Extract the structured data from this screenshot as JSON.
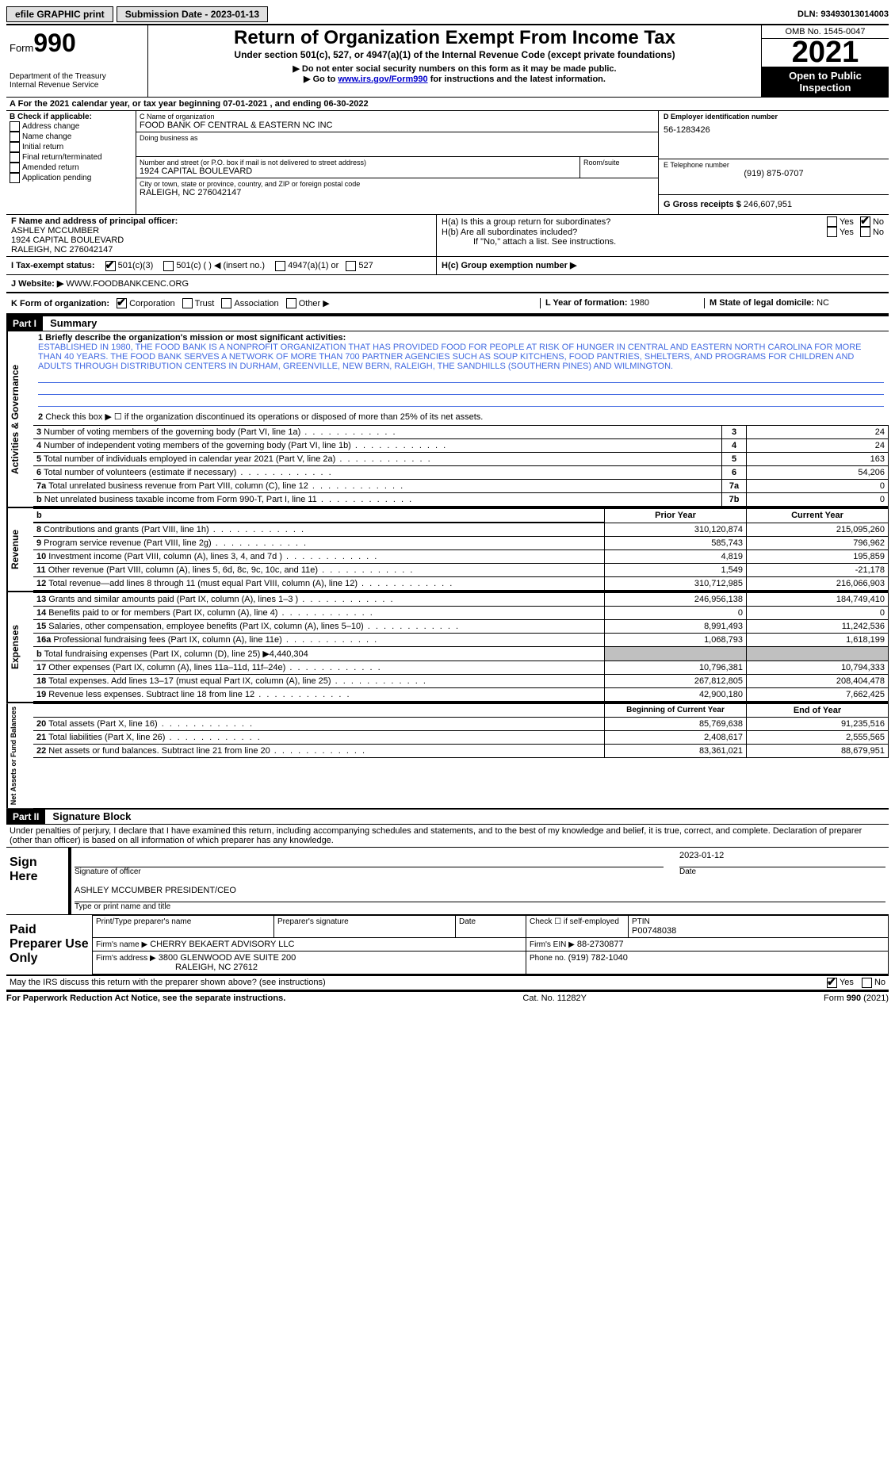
{
  "topbar": {
    "efile": "efile GRAPHIC print",
    "submission_label": "Submission Date - 2023-01-13",
    "dln_label": "DLN: 93493013014003"
  },
  "header": {
    "form_word": "Form",
    "form_number": "990",
    "dept": "Department of the Treasury",
    "irs": "Internal Revenue Service",
    "title": "Return of Organization Exempt From Income Tax",
    "subtitle": "Under section 501(c), 527, or 4947(a)(1) of the Internal Revenue Code (except private foundations)",
    "note1": "▶ Do not enter social security numbers on this form as it may be made public.",
    "note2_pre": "▶ Go to ",
    "note2_link": "www.irs.gov/Form990",
    "note2_post": " for instructions and the latest information.",
    "omb": "OMB No. 1545-0047",
    "year": "2021",
    "inspection": "Open to Public Inspection"
  },
  "line_a": "For the 2021 calendar year, or tax year beginning 07-01-2021   , and ending 06-30-2022",
  "col_b": {
    "title": "B Check if applicable:",
    "items": [
      "Address change",
      "Name change",
      "Initial return",
      "Final return/terminated",
      "Amended return",
      "Application pending"
    ]
  },
  "col_c": {
    "name_label": "C Name of organization",
    "name": "FOOD BANK OF CENTRAL & EASTERN NC INC",
    "dba_label": "Doing business as",
    "addr_label": "Number and street (or P.O. box if mail is not delivered to street address)",
    "room_label": "Room/suite",
    "addr": "1924 CAPITAL BOULEVARD",
    "city_label": "City or town, state or province, country, and ZIP or foreign postal code",
    "city": "RALEIGH, NC  276042147"
  },
  "col_d": {
    "ein_label": "D Employer identification number",
    "ein": "56-1283426",
    "phone_label": "E Telephone number",
    "phone": "(919) 875-0707",
    "gross_label": "G Gross receipts $",
    "gross": "246,607,951"
  },
  "block_f": {
    "label": "F  Name and address of principal officer:",
    "name": "ASHLEY MCCUMBER",
    "addr1": "1924 CAPITAL BOULEVARD",
    "addr2": "RALEIGH, NC  276042147"
  },
  "block_h": {
    "ha": "H(a)  Is this a group return for subordinates?",
    "hb": "H(b)  Are all subordinates included?",
    "hb_note": "If \"No,\" attach a list. See instructions.",
    "hc": "H(c)  Group exemption number ▶",
    "yes": "Yes",
    "no": "No"
  },
  "line_i": {
    "label": "I  Tax-exempt status:",
    "opts": [
      "501(c)(3)",
      "501(c) (  ) ◀ (insert no.)",
      "4947(a)(1) or",
      "527"
    ]
  },
  "line_j": {
    "label": "J  Website: ▶",
    "val": " WWW.FOODBANKCENC.ORG"
  },
  "line_k": {
    "label": "K Form of organization:",
    "opts": [
      "Corporation",
      "Trust",
      "Association",
      "Other ▶"
    ]
  },
  "line_l": {
    "label": "L Year of formation: ",
    "val": "1980"
  },
  "line_m": {
    "label": "M State of legal domicile: ",
    "val": "NC"
  },
  "part1": {
    "header": "Part I",
    "title": "Summary",
    "line1_label": "1  Briefly describe the organization's mission or most significant activities:",
    "mission": "ESTABLISHED IN 1980, THE FOOD BANK IS A NONPROFIT ORGANIZATION THAT HAS PROVIDED FOOD FOR PEOPLE AT RISK OF HUNGER IN CENTRAL AND EASTERN NORTH CAROLINA FOR MORE THAN 40 YEARS. THE FOOD BANK SERVES A NETWORK OF MORE THAN 700 PARTNER AGENCIES SUCH AS SOUP KITCHENS, FOOD PANTRIES, SHELTERS, AND PROGRAMS FOR CHILDREN AND ADULTS THROUGH DISTRIBUTION CENTERS IN DURHAM, GREENVILLE, NEW BERN, RALEIGH, THE SANDHILLS (SOUTHERN PINES) AND WILMINGTON.",
    "line2": "Check this box ▶ ☐  if the organization discontinued its operations or disposed of more than 25% of its net assets.",
    "governance_tab": "Activities & Governance",
    "revenue_tab": "Revenue",
    "expenses_tab": "Expenses",
    "netassets_tab": "Net Assets or Fund Balances",
    "rows_gov": [
      {
        "n": "3",
        "d": "Number of voting members of the governing body (Part VI, line 1a)",
        "box": "3",
        "v": "24"
      },
      {
        "n": "4",
        "d": "Number of independent voting members of the governing body (Part VI, line 1b)",
        "box": "4",
        "v": "24"
      },
      {
        "n": "5",
        "d": "Total number of individuals employed in calendar year 2021 (Part V, line 2a)",
        "box": "5",
        "v": "163"
      },
      {
        "n": "6",
        "d": "Total number of volunteers (estimate if necessary)",
        "box": "6",
        "v": "54,206"
      },
      {
        "n": "7a",
        "d": "Total unrelated business revenue from Part VIII, column (C), line 12",
        "box": "7a",
        "v": "0"
      },
      {
        "n": "b",
        "d": "Net unrelated business taxable income from Form 990-T, Part I, line 11",
        "box": "7b",
        "v": "0"
      }
    ],
    "prior_year_h": "Prior Year",
    "current_year_h": "Current Year",
    "rows_rev": [
      {
        "n": "8",
        "d": "Contributions and grants (Part VIII, line 1h)",
        "p": "310,120,874",
        "c": "215,095,260"
      },
      {
        "n": "9",
        "d": "Program service revenue (Part VIII, line 2g)",
        "p": "585,743",
        "c": "796,962"
      },
      {
        "n": "10",
        "d": "Investment income (Part VIII, column (A), lines 3, 4, and 7d )",
        "p": "4,819",
        "c": "195,859"
      },
      {
        "n": "11",
        "d": "Other revenue (Part VIII, column (A), lines 5, 6d, 8c, 9c, 10c, and 11e)",
        "p": "1,549",
        "c": "-21,178"
      },
      {
        "n": "12",
        "d": "Total revenue—add lines 8 through 11 (must equal Part VIII, column (A), line 12)",
        "p": "310,712,985",
        "c": "216,066,903"
      }
    ],
    "rows_exp": [
      {
        "n": "13",
        "d": "Grants and similar amounts paid (Part IX, column (A), lines 1–3 )",
        "p": "246,956,138",
        "c": "184,749,410"
      },
      {
        "n": "14",
        "d": "Benefits paid to or for members (Part IX, column (A), line 4)",
        "p": "0",
        "c": "0"
      },
      {
        "n": "15",
        "d": "Salaries, other compensation, employee benefits (Part IX, column (A), lines 5–10)",
        "p": "8,991,493",
        "c": "11,242,536"
      },
      {
        "n": "16a",
        "d": "Professional fundraising fees (Part IX, column (A), line 11e)",
        "p": "1,068,793",
        "c": "1,618,199"
      },
      {
        "n": "b",
        "d": "Total fundraising expenses (Part IX, column (D), line 25) ▶4,440,304",
        "p": "",
        "c": "",
        "shaded": true
      },
      {
        "n": "17",
        "d": "Other expenses (Part IX, column (A), lines 11a–11d, 11f–24e)",
        "p": "10,796,381",
        "c": "10,794,333"
      },
      {
        "n": "18",
        "d": "Total expenses. Add lines 13–17 (must equal Part IX, column (A), line 25)",
        "p": "267,812,805",
        "c": "208,404,478"
      },
      {
        "n": "19",
        "d": "Revenue less expenses. Subtract line 18 from line 12",
        "p": "42,900,180",
        "c": "7,662,425"
      }
    ],
    "begin_h": "Beginning of Current Year",
    "end_h": "End of Year",
    "rows_na": [
      {
        "n": "20",
        "d": "Total assets (Part X, line 16)",
        "p": "85,769,638",
        "c": "91,235,516"
      },
      {
        "n": "21",
        "d": "Total liabilities (Part X, line 26)",
        "p": "2,408,617",
        "c": "2,555,565"
      },
      {
        "n": "22",
        "d": "Net assets or fund balances. Subtract line 21 from line 20",
        "p": "83,361,021",
        "c": "88,679,951"
      }
    ]
  },
  "part2": {
    "header": "Part II",
    "title": "Signature Block",
    "declaration": "Under penalties of perjury, I declare that I have examined this return, including accompanying schedules and statements, and to the best of my knowledge and belief, it is true, correct, and complete. Declaration of preparer (other than officer) is based on all information of which preparer has any knowledge.",
    "sign_here": "Sign Here",
    "sig_officer": "Signature of officer",
    "sig_date": "2023-01-12",
    "date_label": "Date",
    "officer_name": "ASHLEY MCCUMBER  PRESIDENT/CEO",
    "type_name": "Type or print name and title",
    "paid_prep": "Paid Preparer Use Only",
    "prep_name_h": "Print/Type preparer's name",
    "prep_sig_h": "Preparer's signature",
    "date_h": "Date",
    "check_self": "Check ☐ if self-employed",
    "ptin_label": "PTIN",
    "ptin": "P00748038",
    "firm_name_l": "Firm's name    ▶",
    "firm_name": "CHERRY BEKAERT ADVISORY LLC",
    "firm_ein_l": "Firm's EIN ▶",
    "firm_ein": "88-2730877",
    "firm_addr_l": "Firm's address ▶",
    "firm_addr": "3800 GLENWOOD AVE SUITE 200",
    "firm_city": "RALEIGH, NC  27612",
    "firm_phone_l": "Phone no.",
    "firm_phone": "(919) 782-1040",
    "discuss": "May the IRS discuss this return with the preparer shown above? (see instructions)",
    "yes": "Yes",
    "no": "No"
  },
  "footer": {
    "left": "For Paperwork Reduction Act Notice, see the separate instructions.",
    "mid": "Cat. No. 11282Y",
    "right": "Form 990 (2021)"
  }
}
